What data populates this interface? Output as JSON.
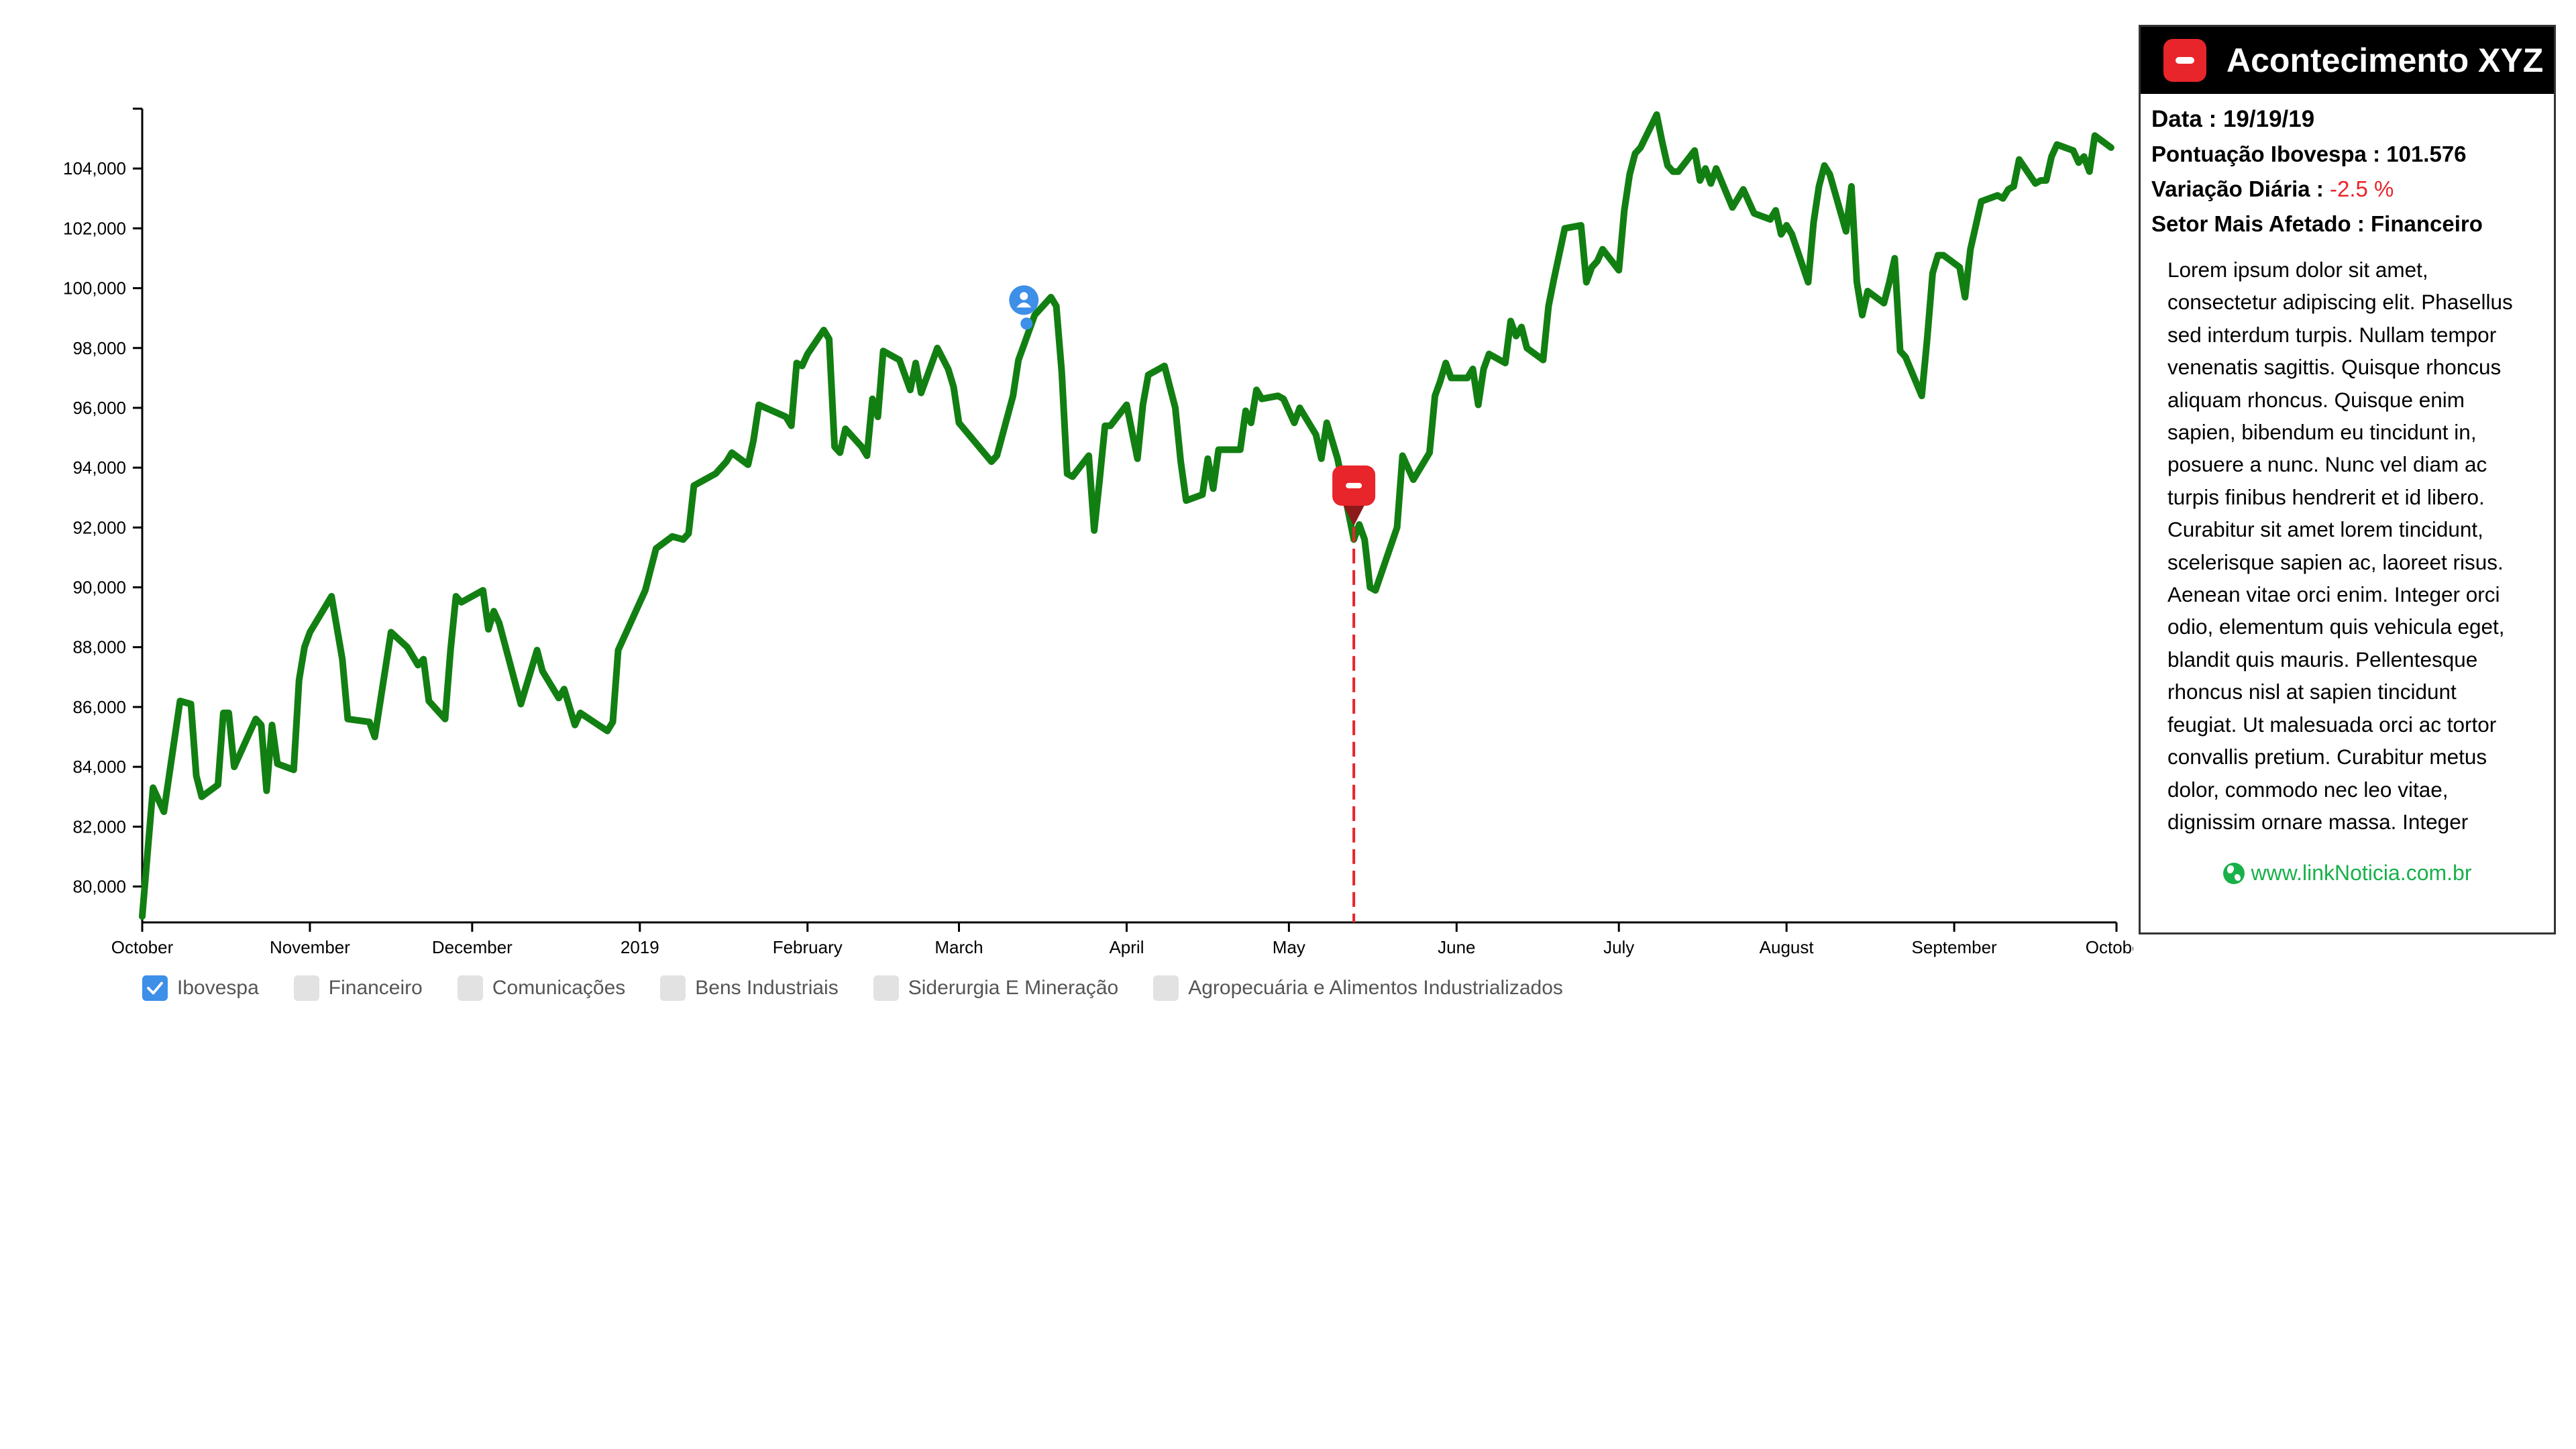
{
  "chart_data": {
    "type": "line",
    "title": "",
    "xlabel": "",
    "ylabel": "",
    "ylim": [
      78800,
      106000
    ],
    "y_ticks": [
      "80,000",
      "82,000",
      "84,000",
      "86,000",
      "88,000",
      "90,000",
      "92,000",
      "94,000",
      "96,000",
      "98,000",
      "100,000",
      "102,000",
      "104,000"
    ],
    "y_tick_values": [
      80000,
      82000,
      84000,
      86000,
      88000,
      90000,
      92000,
      94000,
      96000,
      98000,
      100000,
      102000,
      104000
    ],
    "x_ticks": [
      "October",
      "November",
      "December",
      "2019",
      "February",
      "March",
      "April",
      "May",
      "June",
      "July",
      "August",
      "September",
      "October"
    ],
    "x_tick_dates": [
      "2018-10-01",
      "2018-11-01",
      "2018-12-01",
      "2019-01-01",
      "2019-02-01",
      "2019-03-01",
      "2019-04-01",
      "2019-05-01",
      "2019-06-01",
      "2019-07-01",
      "2019-08-01",
      "2019-09-01",
      "2019-10-01"
    ],
    "x_range": [
      "2018-10-01",
      "2019-10-01"
    ],
    "grid": false,
    "legend_position": "bottom-left",
    "series": [
      {
        "name": "Ibovespa",
        "color": "#127f12",
        "points": [
          [
            "2018-10-01",
            79000
          ],
          [
            "2018-10-03",
            83300
          ],
          [
            "2018-10-05",
            82500
          ],
          [
            "2018-10-08",
            86200
          ],
          [
            "2018-10-10",
            86100
          ],
          [
            "2018-10-11",
            83700
          ],
          [
            "2018-10-12",
            83000
          ],
          [
            "2018-10-15",
            83400
          ],
          [
            "2018-10-16",
            85800
          ],
          [
            "2018-10-17",
            85800
          ],
          [
            "2018-10-18",
            84000
          ],
          [
            "2018-10-22",
            85600
          ],
          [
            "2018-10-23",
            85400
          ],
          [
            "2018-10-24",
            83200
          ],
          [
            "2018-10-25",
            85400
          ],
          [
            "2018-10-26",
            84100
          ],
          [
            "2018-10-29",
            83900
          ],
          [
            "2018-10-30",
            86900
          ],
          [
            "2018-10-31",
            88000
          ],
          [
            "2018-11-01",
            88500
          ],
          [
            "2018-11-05",
            89700
          ],
          [
            "2018-11-07",
            87600
          ],
          [
            "2018-11-08",
            85600
          ],
          [
            "2018-11-12",
            85500
          ],
          [
            "2018-11-13",
            85000
          ],
          [
            "2018-11-16",
            88500
          ],
          [
            "2018-11-19",
            88000
          ],
          [
            "2018-11-21",
            87400
          ],
          [
            "2018-11-22",
            87600
          ],
          [
            "2018-11-23",
            86200
          ],
          [
            "2018-11-26",
            85600
          ],
          [
            "2018-11-27",
            87900
          ],
          [
            "2018-11-28",
            89700
          ],
          [
            "2018-11-29",
            89500
          ],
          [
            "2018-12-03",
            89900
          ],
          [
            "2018-12-04",
            88600
          ],
          [
            "2018-12-05",
            89200
          ],
          [
            "2018-12-06",
            88800
          ],
          [
            "2018-12-10",
            86100
          ],
          [
            "2018-12-13",
            87900
          ],
          [
            "2018-12-14",
            87200
          ],
          [
            "2018-12-17",
            86300
          ],
          [
            "2018-12-18",
            86600
          ],
          [
            "2018-12-20",
            85400
          ],
          [
            "2018-12-21",
            85800
          ],
          [
            "2018-12-26",
            85200
          ],
          [
            "2018-12-27",
            85500
          ],
          [
            "2018-12-28",
            87900
          ],
          [
            "2019-01-02",
            89900
          ],
          [
            "2019-01-04",
            91300
          ],
          [
            "2019-01-07",
            91700
          ],
          [
            "2019-01-09",
            91600
          ],
          [
            "2019-01-10",
            91800
          ],
          [
            "2019-01-11",
            93400
          ],
          [
            "2019-01-14",
            93700
          ],
          [
            "2019-01-15",
            93800
          ],
          [
            "2019-01-17",
            94200
          ],
          [
            "2019-01-18",
            94500
          ],
          [
            "2019-01-21",
            94100
          ],
          [
            "2019-01-22",
            94900
          ],
          [
            "2019-01-23",
            96100
          ],
          [
            "2019-01-28",
            95700
          ],
          [
            "2019-01-29",
            95400
          ],
          [
            "2019-01-30",
            97500
          ],
          [
            "2019-01-31",
            97400
          ],
          [
            "2019-02-01",
            97800
          ],
          [
            "2019-02-04",
            98600
          ],
          [
            "2019-02-05",
            98300
          ],
          [
            "2019-02-06",
            94700
          ],
          [
            "2019-02-07",
            94500
          ],
          [
            "2019-02-08",
            95300
          ],
          [
            "2019-02-11",
            94700
          ],
          [
            "2019-02-12",
            94400
          ],
          [
            "2019-02-13",
            96300
          ],
          [
            "2019-02-14",
            95700
          ],
          [
            "2019-02-15",
            97900
          ],
          [
            "2019-02-18",
            97600
          ],
          [
            "2019-02-20",
            96600
          ],
          [
            "2019-02-21",
            97500
          ],
          [
            "2019-02-22",
            96500
          ],
          [
            "2019-02-25",
            98000
          ],
          [
            "2019-02-27",
            97300
          ],
          [
            "2019-02-28",
            96700
          ],
          [
            "2019-03-01",
            95500
          ],
          [
            "2019-03-07",
            94200
          ],
          [
            "2019-03-08",
            94400
          ],
          [
            "2019-03-11",
            96400
          ],
          [
            "2019-03-12",
            97600
          ],
          [
            "2019-03-13",
            98100
          ],
          [
            "2019-03-14",
            98600
          ],
          [
            "2019-03-15",
            99100
          ],
          [
            "2019-03-18",
            99700
          ],
          [
            "2019-03-19",
            99400
          ],
          [
            "2019-03-20",
            97200
          ],
          [
            "2019-03-21",
            93800
          ],
          [
            "2019-03-22",
            93700
          ],
          [
            "2019-03-25",
            94400
          ],
          [
            "2019-03-26",
            91900
          ],
          [
            "2019-03-27",
            93600
          ],
          [
            "2019-03-28",
            95400
          ],
          [
            "2019-03-29",
            95400
          ],
          [
            "2019-04-01",
            96100
          ],
          [
            "2019-04-02",
            95200
          ],
          [
            "2019-04-03",
            94300
          ],
          [
            "2019-04-04",
            96100
          ],
          [
            "2019-04-05",
            97100
          ],
          [
            "2019-04-08",
            97400
          ],
          [
            "2019-04-10",
            96000
          ],
          [
            "2019-04-11",
            94200
          ],
          [
            "2019-04-12",
            92900
          ],
          [
            "2019-04-15",
            93100
          ],
          [
            "2019-04-16",
            94300
          ],
          [
            "2019-04-17",
            93300
          ],
          [
            "2019-04-18",
            94600
          ],
          [
            "2019-04-22",
            94600
          ],
          [
            "2019-04-23",
            95900
          ],
          [
            "2019-04-24",
            95500
          ],
          [
            "2019-04-25",
            96600
          ],
          [
            "2019-04-26",
            96300
          ],
          [
            "2019-04-29",
            96400
          ],
          [
            "2019-04-30",
            96300
          ],
          [
            "2019-05-02",
            95500
          ],
          [
            "2019-05-03",
            96000
          ],
          [
            "2019-05-06",
            95100
          ],
          [
            "2019-05-07",
            94300
          ],
          [
            "2019-05-08",
            95500
          ],
          [
            "2019-05-10",
            94300
          ],
          [
            "2019-05-13",
            91600
          ],
          [
            "2019-05-14",
            92100
          ],
          [
            "2019-05-15",
            91600
          ],
          [
            "2019-05-16",
            90000
          ],
          [
            "2019-05-17",
            89900
          ],
          [
            "2019-05-21",
            92000
          ],
          [
            "2019-05-22",
            94400
          ],
          [
            "2019-05-24",
            93600
          ],
          [
            "2019-05-27",
            94500
          ],
          [
            "2019-05-28",
            96400
          ],
          [
            "2019-05-29",
            96900
          ],
          [
            "2019-05-30",
            97500
          ],
          [
            "2019-05-31",
            97000
          ],
          [
            "2019-06-03",
            97000
          ],
          [
            "2019-06-04",
            97300
          ],
          [
            "2019-06-05",
            96100
          ],
          [
            "2019-06-06",
            97300
          ],
          [
            "2019-06-07",
            97800
          ],
          [
            "2019-06-10",
            97500
          ],
          [
            "2019-06-11",
            98900
          ],
          [
            "2019-06-12",
            98400
          ],
          [
            "2019-06-13",
            98700
          ],
          [
            "2019-06-14",
            98000
          ],
          [
            "2019-06-17",
            97600
          ],
          [
            "2019-06-18",
            99400
          ],
          [
            "2019-06-19",
            100300
          ],
          [
            "2019-06-21",
            102000
          ],
          [
            "2019-06-24",
            102100
          ],
          [
            "2019-06-25",
            100200
          ],
          [
            "2019-06-26",
            100700
          ],
          [
            "2019-06-27",
            100900
          ],
          [
            "2019-06-28",
            101300
          ],
          [
            "2019-07-01",
            100600
          ],
          [
            "2019-07-02",
            102600
          ],
          [
            "2019-07-03",
            103800
          ],
          [
            "2019-07-04",
            104500
          ],
          [
            "2019-07-05",
            104700
          ],
          [
            "2019-07-08",
            105800
          ],
          [
            "2019-07-09",
            104900
          ],
          [
            "2019-07-10",
            104100
          ],
          [
            "2019-07-11",
            103900
          ],
          [
            "2019-07-12",
            103900
          ],
          [
            "2019-07-15",
            104600
          ],
          [
            "2019-07-16",
            103600
          ],
          [
            "2019-07-17",
            104000
          ],
          [
            "2019-07-18",
            103500
          ],
          [
            "2019-07-19",
            104000
          ],
          [
            "2019-07-22",
            102700
          ],
          [
            "2019-07-24",
            103300
          ],
          [
            "2019-07-26",
            102500
          ],
          [
            "2019-07-29",
            102300
          ],
          [
            "2019-07-30",
            102600
          ],
          [
            "2019-07-31",
            101800
          ],
          [
            "2019-08-01",
            102100
          ],
          [
            "2019-08-02",
            101800
          ],
          [
            "2019-08-05",
            100200
          ],
          [
            "2019-08-06",
            102200
          ],
          [
            "2019-08-07",
            103400
          ],
          [
            "2019-08-08",
            104100
          ],
          [
            "2019-08-09",
            103800
          ],
          [
            "2019-08-12",
            101900
          ],
          [
            "2019-08-13",
            103400
          ],
          [
            "2019-08-14",
            100200
          ],
          [
            "2019-08-15",
            99100
          ],
          [
            "2019-08-16",
            99900
          ],
          [
            "2019-08-19",
            99500
          ],
          [
            "2019-08-20",
            100200
          ],
          [
            "2019-08-21",
            101000
          ],
          [
            "2019-08-22",
            97900
          ],
          [
            "2019-08-23",
            97700
          ],
          [
            "2019-08-26",
            96400
          ],
          [
            "2019-08-27",
            98300
          ],
          [
            "2019-08-28",
            100500
          ],
          [
            "2019-08-29",
            101100
          ],
          [
            "2019-08-30",
            101100
          ],
          [
            "2019-09-02",
            100700
          ],
          [
            "2019-09-03",
            99700
          ],
          [
            "2019-09-04",
            101300
          ],
          [
            "2019-09-05",
            102100
          ],
          [
            "2019-09-06",
            102900
          ],
          [
            "2019-09-09",
            103100
          ],
          [
            "2019-09-10",
            103000
          ],
          [
            "2019-09-11",
            103300
          ],
          [
            "2019-09-12",
            103400
          ],
          [
            "2019-09-13",
            104300
          ],
          [
            "2019-09-16",
            103500
          ],
          [
            "2019-09-17",
            103600
          ],
          [
            "2019-09-18",
            103600
          ],
          [
            "2019-09-19",
            104400
          ],
          [
            "2019-09-20",
            104800
          ],
          [
            "2019-09-23",
            104600
          ],
          [
            "2019-09-24",
            104200
          ],
          [
            "2019-09-25",
            104400
          ],
          [
            "2019-09-26",
            103900
          ],
          [
            "2019-09-27",
            105100
          ],
          [
            "2019-09-30",
            104700
          ]
        ]
      }
    ],
    "annotations": [
      {
        "kind": "user-marker",
        "date": "2019-03-13",
        "value": 99600,
        "color": "#3d8fe8",
        "icon": "user-icon"
      },
      {
        "kind": "event-marker",
        "date": "2019-05-13",
        "value": 93400,
        "color": "#e8252b",
        "icon": "event-icon",
        "guide_line": "dashed"
      }
    ]
  },
  "legend": {
    "items": [
      {
        "label": "Ibovespa",
        "checked": true
      },
      {
        "label": "Financeiro",
        "checked": false
      },
      {
        "label": "Comunicações",
        "checked": false
      },
      {
        "label": "Bens Industriais",
        "checked": false
      },
      {
        "label": "Siderurgia E Mineração",
        "checked": false
      },
      {
        "label": "Agropecuária e Alimentos Industrializados",
        "checked": false
      }
    ]
  },
  "panel": {
    "title": "Acontecimento XYZ",
    "date_line": "Data : 19/19/19",
    "score_line": "Pontuação Ibovespa : 101.576",
    "variation_label": "Variação Diária : ",
    "variation_value": "-2.5 %",
    "sector_line": "Setor Mais Afetado : Financeiro",
    "body": "Lorem ipsum dolor sit amet, consectetur adipiscing elit. Phasellus sed interdum turpis. Nullam tempor venenatis sagittis. Quisque rhoncus aliquam rhoncus. Quisque enim sapien, bibendum eu tincidunt in, posuere a nunc. Nunc vel diam ac turpis finibus hendrerit et id libero. Curabitur sit amet lorem tincidunt, scelerisque sapien ac, laoreet risus. Aenean vitae orci enim. Integer orci odio, elementum quis vehicula eget, blandit quis mauris. Pellentesque rhoncus nisl at sapien tincidunt feugiat. Ut malesuada orci ac tortor convallis pretium. Curabitur metus dolor, commodo nec leo vitae, dignissim ornare massa. Integer",
    "link": "www.linkNoticia.com.br",
    "link_icon": "globe-icon",
    "accent": "#e8252b",
    "link_color": "#18b04a"
  }
}
